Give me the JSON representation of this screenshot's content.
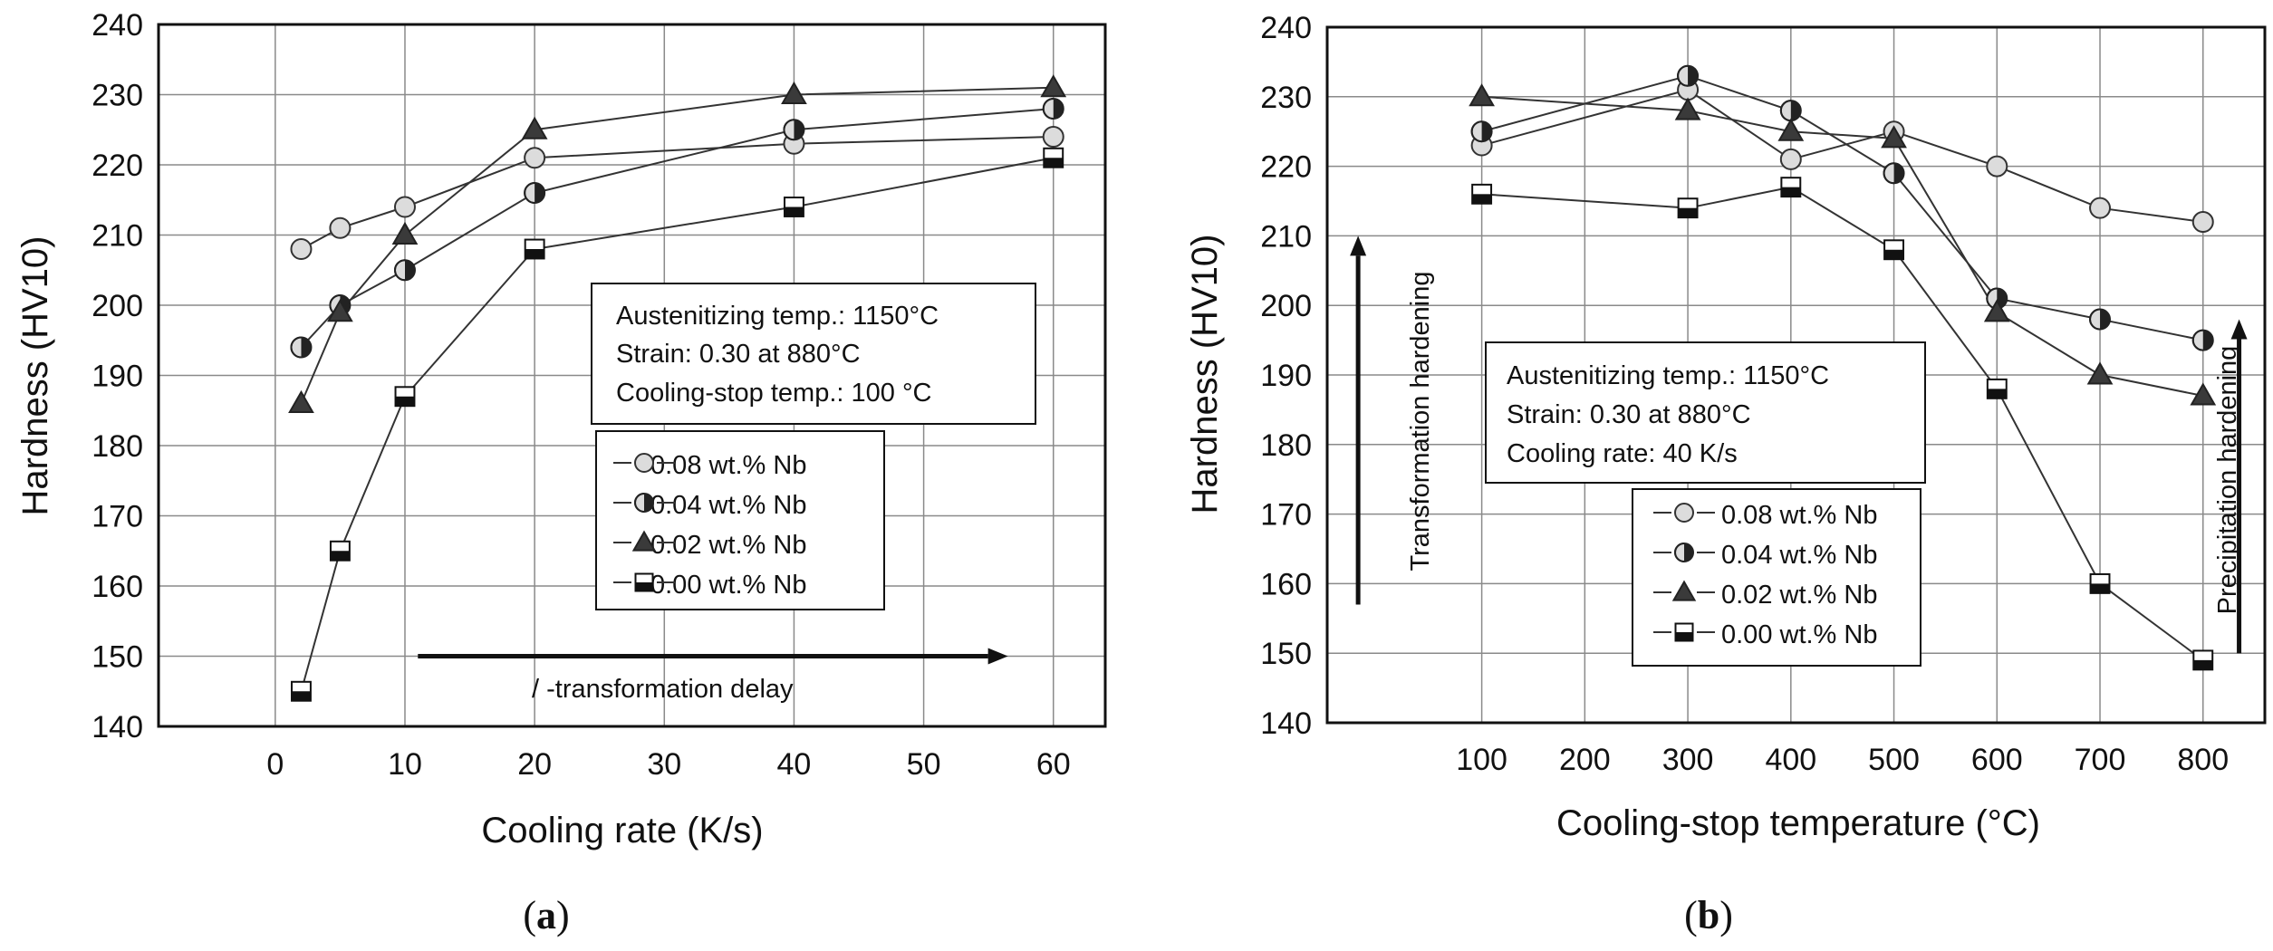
{
  "colors": {
    "circle_fill": "#dcdcdc",
    "half_light": "#dcdcdc",
    "half_dark": "#222222",
    "triangle_fill": "#3a3a3a",
    "square_top": "#ffffff",
    "square_bottom": "#111111",
    "line": "#333333",
    "grid": "#8a8a8a"
  },
  "chart_data": [
    {
      "type": "line",
      "panel_label": "a",
      "xlabel": "Cooling rate (K/s)",
      "ylabel": "Hardness (HV10)",
      "xlim": [
        -9,
        64
      ],
      "ylim": [
        140,
        240
      ],
      "x_ticks": [
        0,
        10,
        20,
        30,
        40,
        50,
        60
      ],
      "y_ticks": [
        140,
        150,
        160,
        170,
        180,
        190,
        200,
        210,
        220,
        230,
        240
      ],
      "grid": true,
      "series": [
        {
          "name": "0.08 wt.% Nb",
          "marker": "circle",
          "x": [
            2,
            5,
            10,
            20,
            40,
            60
          ],
          "y": [
            208,
            211,
            214,
            221,
            223,
            224
          ]
        },
        {
          "name": "0.04 wt.% Nb",
          "marker": "half-circle",
          "x": [
            2,
            5,
            10,
            20,
            40,
            60
          ],
          "y": [
            194,
            200,
            205,
            216,
            225,
            228
          ]
        },
        {
          "name": "0.02 wt.% Nb",
          "marker": "triangle",
          "x": [
            2,
            5,
            10,
            20,
            40,
            60
          ],
          "y": [
            186,
            199,
            210,
            225,
            230,
            231
          ]
        },
        {
          "name": "0.00 wt.% Nb",
          "marker": "half-square",
          "x": [
            2,
            5,
            10,
            20,
            40,
            60
          ],
          "y": [
            145,
            165,
            187,
            208,
            214,
            221
          ]
        }
      ],
      "conditions": [
        "Austenitizing temp.: 1150°C",
        "Strain: 0.30 at 880°C",
        "Cooling-stop temp.: 100 °C"
      ],
      "legend_entries": [
        "0.08 wt.% Nb",
        "0.04 wt.% Nb",
        "0.02 wt.% Nb",
        "0.00 wt.% Nb"
      ],
      "annotation": {
        "text": "/   -transformation delay",
        "arrow_from": {
          "x": 11,
          "y": 150
        },
        "arrow_to": {
          "x": 56.5,
          "y": 150
        }
      }
    },
    {
      "type": "line",
      "panel_label": "b",
      "xlabel": "Cooling-stop temperature (°C)",
      "ylabel": "Hardness (HV10)",
      "xlim": [
        -50,
        860
      ],
      "ylim": [
        140,
        240
      ],
      "x_ticks": [
        100,
        200,
        300,
        400,
        500,
        600,
        700,
        800
      ],
      "y_ticks": [
        140,
        150,
        160,
        170,
        180,
        190,
        200,
        210,
        220,
        230,
        240
      ],
      "grid": true,
      "series": [
        {
          "name": "0.08 wt.% Nb",
          "marker": "circle",
          "x": [
            100,
            300,
            400,
            500,
            600,
            700,
            800
          ],
          "y": [
            223,
            231,
            221,
            225,
            220,
            214,
            212
          ]
        },
        {
          "name": "0.04 wt.% Nb",
          "marker": "half-circle",
          "x": [
            100,
            300,
            400,
            500,
            600,
            700,
            800
          ],
          "y": [
            225,
            233,
            228,
            219,
            201,
            198,
            195
          ]
        },
        {
          "name": "0.02 wt.% Nb",
          "marker": "triangle",
          "x": [
            100,
            300,
            400,
            500,
            600,
            700,
            800
          ],
          "y": [
            230,
            228,
            225,
            224,
            199,
            190,
            187
          ]
        },
        {
          "name": "0.00 wt.% Nb",
          "marker": "half-square",
          "x": [
            100,
            300,
            400,
            500,
            600,
            700,
            800
          ],
          "y": [
            216,
            214,
            217,
            208,
            188,
            160,
            149
          ]
        }
      ],
      "conditions": [
        "Austenitizing temp.: 1150°C",
        "Strain: 0.30 at 880°C",
        "Cooling rate: 40 K/s"
      ],
      "legend_entries": [
        "0.08 wt.% Nb",
        "0.04 wt.% Nb",
        "0.02 wt.% Nb",
        "0.00 wt.% Nb"
      ],
      "annotations": [
        {
          "text": "Transformation hardening",
          "arrow_x": -20,
          "y_from": 157,
          "y_to": 210
        },
        {
          "text": "Precipitation hardening",
          "arrow_x": 835,
          "y_from": 150,
          "y_to": 198
        }
      ]
    }
  ]
}
